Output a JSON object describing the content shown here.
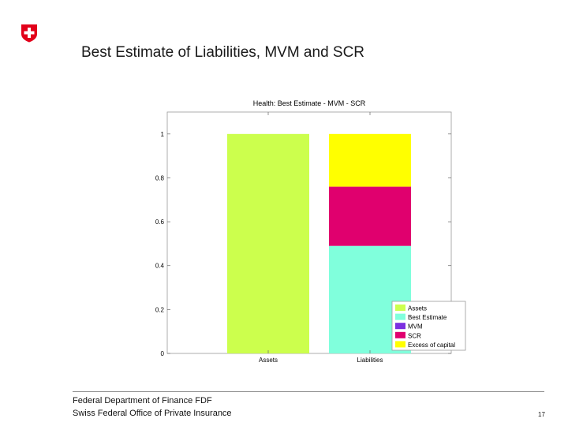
{
  "slide": {
    "title": "Best Estimate of Liabilities,  MVM and SCR",
    "footer_line1": "Federal Department of Finance FDF",
    "footer_line2": "Swiss Federal Office of Private Insurance",
    "page_number": "17"
  },
  "colors": {
    "logo_red": "#e2001a",
    "assets": "#ccff4d",
    "best_estimate": "#80ffdc",
    "mvm": "#7b2fe0",
    "scr": "#e0006e",
    "excess_of_capital": "#ffff00"
  },
  "chart_data": {
    "type": "bar",
    "stacked": true,
    "title": "Health: Best Estimate - MVM - SCR",
    "xlabel": "",
    "ylabel": "",
    "ylim": [
      0,
      1.1
    ],
    "yticks": [
      0,
      0.2,
      0.4,
      0.6,
      0.8,
      1
    ],
    "ytick_labels": [
      "0",
      "0.2",
      "0.4",
      "0.6",
      "0.8",
      "1"
    ],
    "categories": [
      "Assets",
      "Liabilities"
    ],
    "series": [
      {
        "name": "Assets",
        "color": "#ccff4d",
        "values": [
          1.0,
          0
        ]
      },
      {
        "name": "Best Estimate",
        "color": "#80ffdc",
        "values": [
          0,
          0.49
        ]
      },
      {
        "name": "MVM",
        "color": "#7b2fe0",
        "values": [
          0,
          0.0
        ]
      },
      {
        "name": "SCR",
        "color": "#e0006e",
        "values": [
          0,
          0.27
        ]
      },
      {
        "name": "Excess of capital",
        "color": "#ffff00",
        "values": [
          0,
          0.24
        ]
      }
    ],
    "legend_position": "bottom-right"
  }
}
